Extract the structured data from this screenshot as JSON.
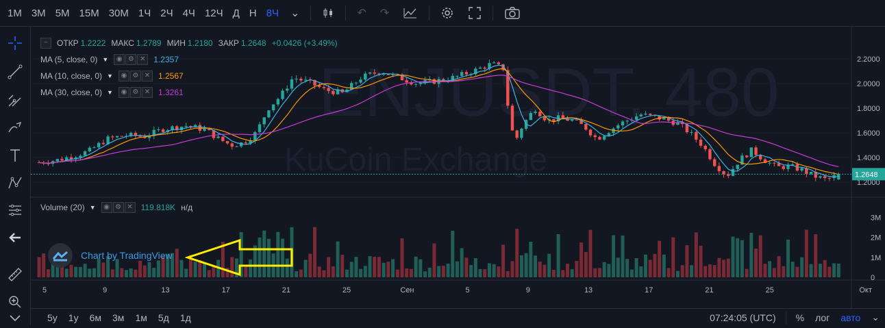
{
  "toolbar": {
    "intervals": [
      "1M",
      "3M",
      "5M",
      "15M",
      "30M",
      "1Ч",
      "2Ч",
      "4Ч",
      "12Ч",
      "Д",
      "Н",
      "8Ч"
    ],
    "active_interval": "8Ч"
  },
  "legend": {
    "open_label": "ОТКР",
    "open": "1.2222",
    "high_label": "МАКС",
    "high": "1.2789",
    "low_label": "МИН",
    "low": "1.2180",
    "close_label": "ЗАКР",
    "close": "1.2648",
    "change": "+0.0426 (+3.49%)",
    "ma": [
      {
        "label": "MA (5, close, 0)",
        "value": "1.2357",
        "color": "#3bb3e4"
      },
      {
        "label": "MA (10, close, 0)",
        "value": "1.2567",
        "color": "#ff9800"
      },
      {
        "label": "MA (30, close, 0)",
        "value": "1.3261",
        "color": "#c83bd4"
      }
    ],
    "volume_label": "Volume (20)",
    "volume_value": "119.818K",
    "volume_extra": "н/д"
  },
  "watermark": {
    "symbol": "ENJUSDT, 480",
    "exchange": "KuCoin Exchange"
  },
  "branding": {
    "tv_text": "Chart by TradingView"
  },
  "colors": {
    "up": "#26a69a",
    "down": "#ef5350",
    "up_vol": "#1f5f57",
    "down_vol": "#7a2a35",
    "ma5": "#3bb3e4",
    "ma10": "#ff9800",
    "ma30": "#c83bd4",
    "arrow": "#ffee00"
  },
  "bottom": {
    "ranges": [
      "5y",
      "1y",
      "6м",
      "3м",
      "1м",
      "5д",
      "1д"
    ],
    "clock": "07:24:05 (UTC)",
    "percent": "%",
    "log": "лог",
    "auto": "авто"
  },
  "chart_data": {
    "type": "candlestick",
    "last_price": "1.2648",
    "price_ticks": [
      "2.2000",
      "2.0000",
      "1.8000",
      "1.6000",
      "1.4000",
      "1.2000"
    ],
    "price_tick_values": [
      2.2,
      2.0,
      1.8,
      1.6,
      1.4,
      1.2
    ],
    "volume_ticks": [
      "3M",
      "2M",
      "1M",
      "0"
    ],
    "volume_tick_values": [
      3000000,
      2000000,
      1000000,
      0
    ],
    "x_ticks": [
      "5",
      "9",
      "13",
      "17",
      "21",
      "25",
      "Сен",
      "5",
      "9",
      "13",
      "17",
      "21",
      "25",
      "Окт"
    ],
    "price_range": [
      1.1,
      2.35
    ],
    "volume_range": [
      0,
      3800000
    ],
    "candle_count": 175,
    "close_path_keypoints": [
      [
        0,
        1.36
      ],
      [
        6,
        1.38
      ],
      [
        12,
        1.42
      ],
      [
        16,
        1.45
      ],
      [
        22,
        1.55
      ],
      [
        28,
        1.58
      ],
      [
        34,
        1.57
      ],
      [
        40,
        1.63
      ],
      [
        48,
        1.66
      ],
      [
        54,
        1.62
      ],
      [
        58,
        1.55
      ],
      [
        62,
        1.5
      ],
      [
        66,
        1.52
      ],
      [
        70,
        1.6
      ],
      [
        74,
        1.8
      ],
      [
        78,
        1.9
      ],
      [
        82,
        2.05
      ],
      [
        88,
        2.0
      ],
      [
        92,
        1.95
      ],
      [
        98,
        1.92
      ],
      [
        104,
        2.05
      ],
      [
        110,
        2.1
      ],
      [
        116,
        2.05
      ],
      [
        122,
        2.0
      ],
      [
        128,
        2.02
      ],
      [
        134,
        2.05
      ],
      [
        140,
        2.1
      ],
      [
        146,
        2.16
      ],
      [
        150,
        2.12
      ],
      [
        152,
        1.65
      ],
      [
        154,
        1.55
      ],
      [
        156,
        1.66
      ],
      [
        160,
        1.8
      ],
      [
        164,
        1.7
      ],
      [
        168,
        1.72
      ],
      [
        172,
        1.7
      ],
      [
        176,
        1.65
      ],
      [
        180,
        1.55
      ],
      [
        184,
        1.62
      ],
      [
        188,
        1.68
      ],
      [
        194,
        1.75
      ],
      [
        200,
        1.72
      ],
      [
        206,
        1.68
      ],
      [
        210,
        1.6
      ],
      [
        214,
        1.5
      ],
      [
        218,
        1.35
      ],
      [
        222,
        1.25
      ],
      [
        226,
        1.38
      ],
      [
        230,
        1.46
      ],
      [
        234,
        1.38
      ],
      [
        238,
        1.32
      ],
      [
        242,
        1.33
      ],
      [
        246,
        1.3
      ],
      [
        250,
        1.25
      ],
      [
        254,
        1.22
      ],
      [
        258,
        1.26
      ]
    ]
  }
}
